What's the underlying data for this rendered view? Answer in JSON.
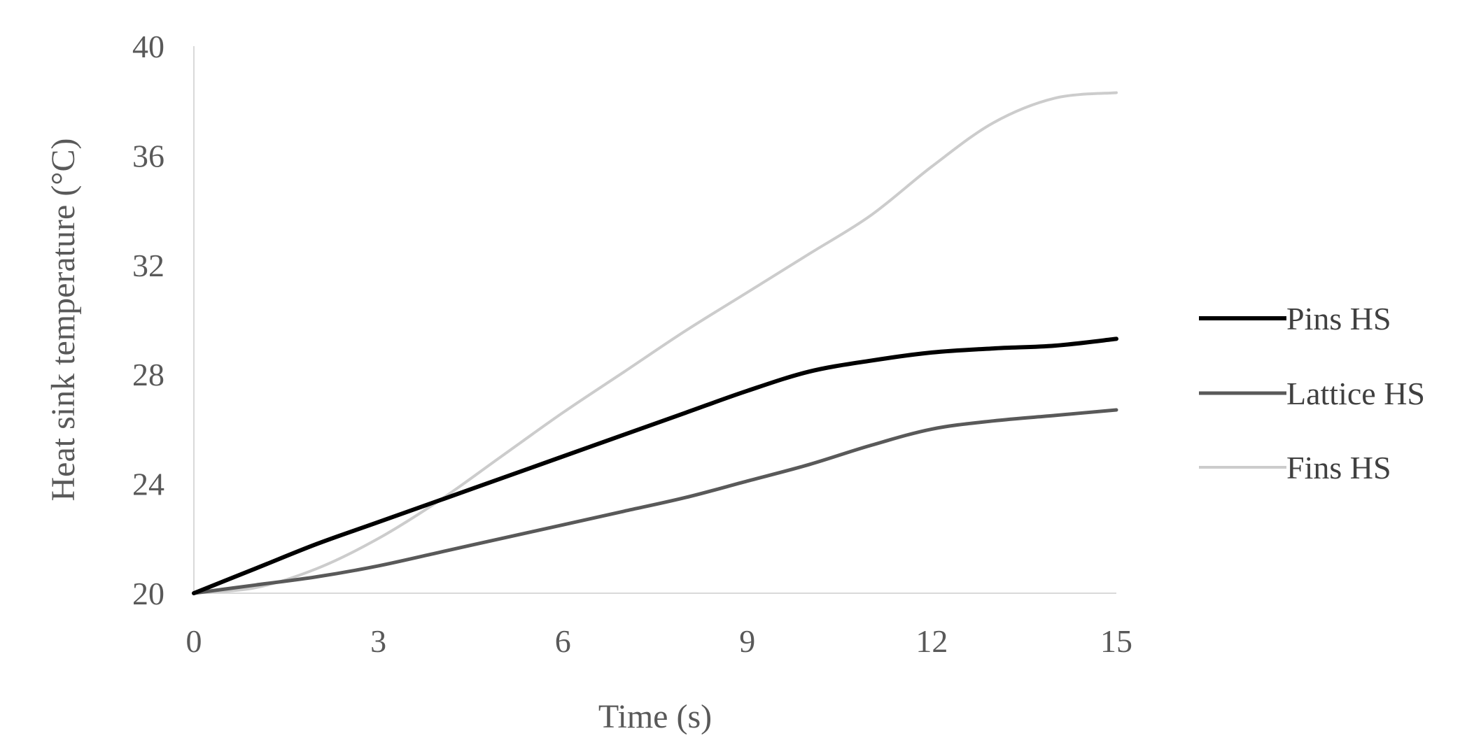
{
  "chart_data": {
    "type": "line",
    "title": "",
    "xlabel": "Time (s)",
    "ylabel": "Heat sink temperature (°C)",
    "xlim": [
      0,
      15
    ],
    "ylim": [
      20,
      40
    ],
    "xticks": [
      "0",
      "3",
      "6",
      "9",
      "12",
      "15"
    ],
    "yticks": [
      "20",
      "24",
      "28",
      "32",
      "36",
      "40"
    ],
    "grid": false,
    "legend": "right",
    "x": [
      0,
      1,
      2,
      3,
      4,
      5,
      6,
      7,
      8,
      9,
      10,
      11,
      12,
      13,
      14,
      15
    ],
    "series": [
      {
        "name": "Pins HS",
        "color": "#000000",
        "values": [
          20.0,
          20.9,
          21.8,
          22.6,
          23.4,
          24.2,
          25.0,
          25.8,
          26.6,
          27.4,
          28.1,
          28.5,
          28.8,
          28.95,
          29.05,
          29.3
        ]
      },
      {
        "name": "Lattice HS",
        "color": "#595959",
        "values": [
          20.0,
          20.3,
          20.6,
          21.0,
          21.5,
          22.0,
          22.5,
          23.0,
          23.5,
          24.1,
          24.7,
          25.4,
          26.0,
          26.3,
          26.5,
          26.7
        ]
      },
      {
        "name": "Fins HS",
        "color": "#cccccc",
        "values": [
          20.0,
          20.2,
          20.9,
          22.0,
          23.4,
          25.0,
          26.6,
          28.1,
          29.6,
          31.0,
          32.4,
          33.8,
          35.6,
          37.2,
          38.1,
          38.3
        ]
      }
    ]
  }
}
